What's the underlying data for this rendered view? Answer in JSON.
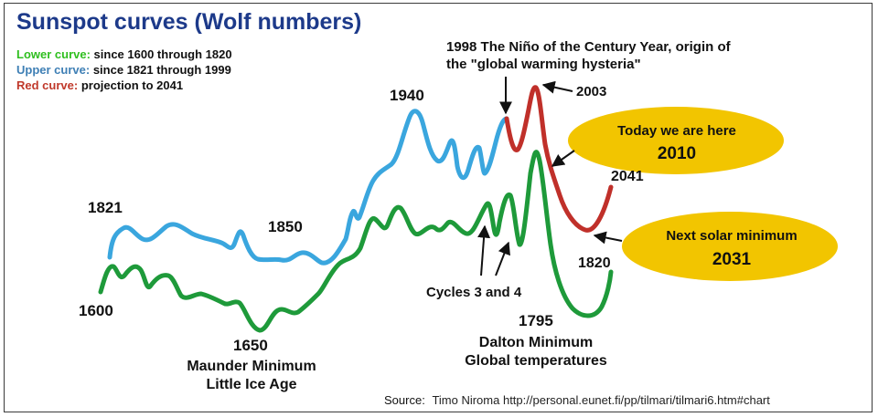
{
  "title": "Sunspot curves (Wolf numbers)",
  "legend": [
    {
      "key": "Lower curve:",
      "text": "since 1600 through 1820",
      "color": "#2fbf1f"
    },
    {
      "key": "Upper curve:",
      "text": "since 1821 through 1999",
      "color": "#3e7fb5"
    },
    {
      "key": "Red curve:",
      "text": "projection to 2041",
      "color": "#c0392b"
    }
  ],
  "colors": {
    "lower": "#1e9a3a",
    "upper": "#3aa6de",
    "red": "#c0302a",
    "ellipse": "#f2c500",
    "today_text": "#1a1a1a",
    "minimum_text": "#d0201a"
  },
  "chart_data": {
    "type": "line",
    "title": "Sunspot curves (Wolf numbers)",
    "xlabel": "",
    "ylabel": "",
    "grid": false,
    "series": [
      {
        "name": "Lower curve: since 1600 through 1820",
        "x": [
          1600,
          1650,
          1795,
          1820
        ],
        "labels": [
          "1600",
          "1650",
          "1795",
          "1820"
        ]
      },
      {
        "name": "Upper curve: since 1821 through 1999",
        "x": [
          1821,
          1850,
          1940,
          1998
        ],
        "labels": [
          "1821",
          "1850",
          "1940"
        ]
      },
      {
        "name": "Red curve: projection to 2041",
        "x": [
          2003,
          2010,
          2031,
          2041
        ],
        "labels": [
          "2003",
          "2041"
        ]
      }
    ]
  },
  "labels": {
    "y1600": "1600",
    "y1821": "1821",
    "y1850": "1850",
    "y1940": "1940",
    "y1650": "1650",
    "maunder1": "Maunder Minimum",
    "maunder2": "Little Ice Age",
    "cycles": "Cycles 3 and 4",
    "y1795": "1795",
    "dalton1": "Dalton Minimum",
    "dalton2": "Global temperatures",
    "y1820": "1820",
    "y2041": "2041",
    "y2003": "2003",
    "nino1": "1998 The Niño of the Century Year, origin of",
    "nino2": "the \"global warming hysteria\"",
    "today1": "Today we are here",
    "today2": "2010",
    "min1": "Next solar minimum",
    "min2": "2031"
  },
  "source": {
    "key": "Source:",
    "text": "Timo Niroma http://personal.eunet.fi/pp/tilmari/tilmari6.htm#chart"
  }
}
